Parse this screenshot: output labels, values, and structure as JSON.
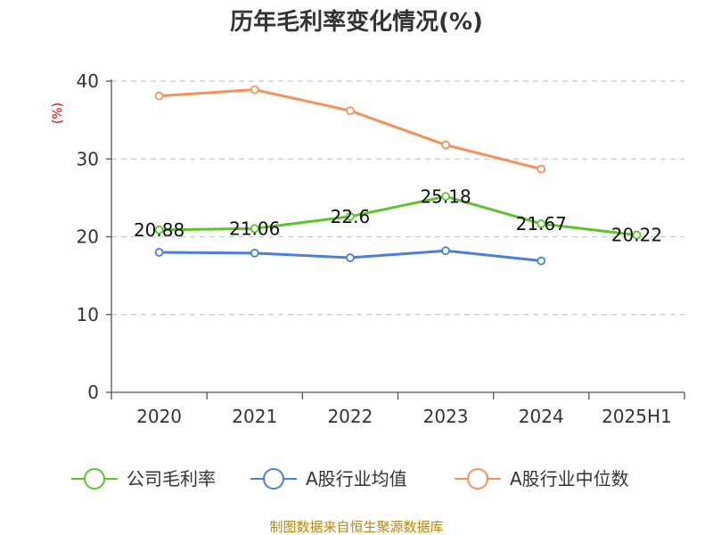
{
  "chart_data": {
    "type": "line",
    "title": "历年毛利率变化情况(%)",
    "ylabel": "(%)",
    "xlabel": "",
    "categories": [
      "2020",
      "2021",
      "2022",
      "2023",
      "2024",
      "2025H1"
    ],
    "ylim": [
      0,
      40
    ],
    "yticks": [
      0,
      10,
      20,
      30,
      40
    ],
    "grid": true,
    "legend_position": "bottom",
    "series": [
      {
        "name": "公司毛利率",
        "color": "#5cc52a",
        "values": [
          20.88,
          21.06,
          22.6,
          25.18,
          21.67,
          20.22
        ],
        "labels": [
          "20.88",
          "21.06",
          "22.6",
          "25.18",
          "21.67",
          "20.22"
        ]
      },
      {
        "name": "A股行业均值",
        "color": "#4a7fdb",
        "values": [
          18.0,
          17.9,
          17.3,
          18.2,
          16.9,
          null
        ]
      },
      {
        "name": "A股行业中位数",
        "color": "#f79059",
        "values": [
          38.1,
          38.9,
          36.2,
          31.8,
          28.7,
          null
        ]
      }
    ]
  },
  "source": "制图数据来自恒生聚源数据库"
}
